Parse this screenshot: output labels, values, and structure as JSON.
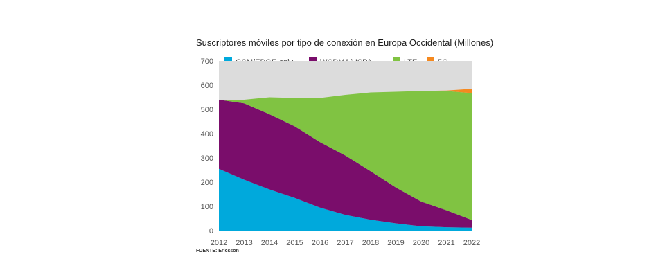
{
  "chart_data": {
    "type": "area",
    "stacked": true,
    "title": "Suscriptores móviles por tipo de conexión en Europa Occidental (Millones)",
    "source": "FUENTE: Ericsson",
    "x": [
      "2012",
      "2013",
      "2014",
      "2015",
      "2016",
      "2017",
      "2018",
      "2019",
      "2020",
      "2021",
      "2022"
    ],
    "ylim": [
      0,
      700
    ],
    "yticks": [
      0,
      100,
      200,
      300,
      400,
      500,
      600,
      700
    ],
    "legend_position": "top",
    "series": [
      {
        "name": "GSM/EDGE-only",
        "color": "#00a9dc",
        "values": [
          255,
          210,
          170,
          135,
          95,
          65,
          45,
          30,
          18,
          14,
          12
        ]
      },
      {
        "name": "WCDMA/HSPA",
        "color": "#7a0d6b",
        "values": [
          285,
          315,
          310,
          295,
          270,
          245,
          200,
          148,
          102,
          70,
          32
        ]
      },
      {
        "name": "LTE",
        "color": "#80c342",
        "values": [
          0,
          15,
          70,
          117,
          182,
          250,
          325,
          395,
          456,
          492,
          523
        ]
      },
      {
        "name": "5G",
        "color": "#f5891f",
        "values": [
          0,
          0,
          0,
          0,
          0,
          0,
          0,
          0,
          0,
          2,
          18
        ]
      }
    ]
  }
}
